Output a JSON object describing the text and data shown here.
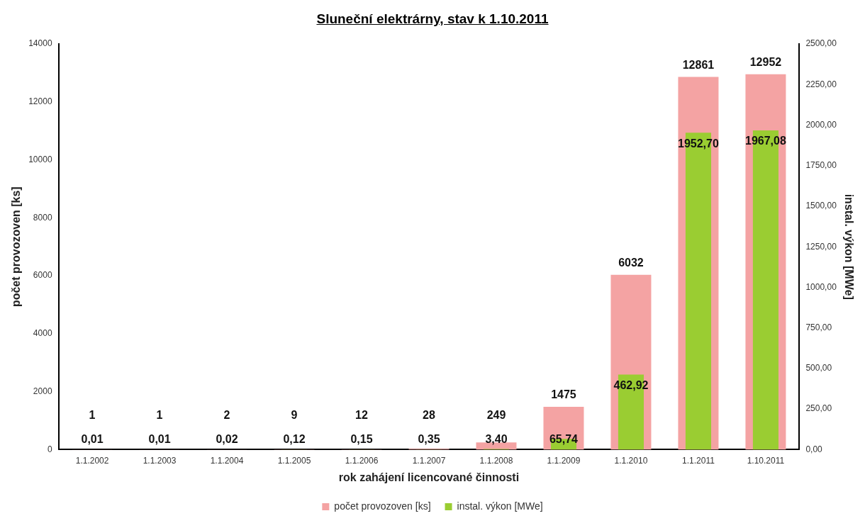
{
  "chart_data": {
    "type": "bar",
    "title": "Sluneční elektrárny, stav k 1.10.2011",
    "xlabel": "rok zahájení licencované činnosti",
    "ylabel": "počet provozoven [ks]",
    "y2label": "instal. výkon [MWe]",
    "categories": [
      "1.1.2002",
      "1.1.2003",
      "1.1.2004",
      "1.1.2005",
      "1.1.2006",
      "1.1.2007",
      "1.1.2008",
      "1.1.2009",
      "1.1.2010",
      "1.1.2011",
      "1.10.2011"
    ],
    "series": [
      {
        "name": "počet provozoven [ks]",
        "color": "#f4a3a3",
        "values": [
          1,
          1,
          2,
          9,
          12,
          28,
          249,
          1475,
          6032,
          12861,
          12952
        ],
        "value_labels": [
          "1",
          "1",
          "2",
          "9",
          "12",
          "28",
          "249",
          "1475",
          "6032",
          "12861",
          "12952"
        ]
      },
      {
        "name": "instal. výkon [MWe]",
        "color": "#9acd32",
        "axis": "y2",
        "values": [
          0.01,
          0.01,
          0.02,
          0.12,
          0.15,
          0.35,
          3.4,
          65.74,
          462.92,
          1952.7,
          1967.08
        ],
        "value_labels": [
          "0,01",
          "0,01",
          "0,02",
          "0,12",
          "0,15",
          "0,35",
          "3,40",
          "65,74",
          "462,92",
          "1952,70",
          "1967,08"
        ]
      }
    ],
    "ylim": [
      0,
      14000
    ],
    "yticks": [
      0,
      2000,
      4000,
      6000,
      8000,
      10000,
      12000,
      14000
    ],
    "y2lim": [
      0,
      2500
    ],
    "y2ticks": [
      {
        "value": 0,
        "label": "0,00"
      },
      {
        "value": 250,
        "label": "250,00"
      },
      {
        "value": 500,
        "label": "500,00"
      },
      {
        "value": 750,
        "label": "750,00"
      },
      {
        "value": 1000,
        "label": "1000,00"
      },
      {
        "value": 1250,
        "label": "1250,00"
      },
      {
        "value": 1500,
        "label": "1500,00"
      },
      {
        "value": 1750,
        "label": "1750,00"
      },
      {
        "value": 2000,
        "label": "2000,00"
      },
      {
        "value": 2250,
        "label": "2250,00"
      },
      {
        "value": 2500,
        "label": "2500,00"
      }
    ],
    "grid": false,
    "legend": "bottom"
  }
}
